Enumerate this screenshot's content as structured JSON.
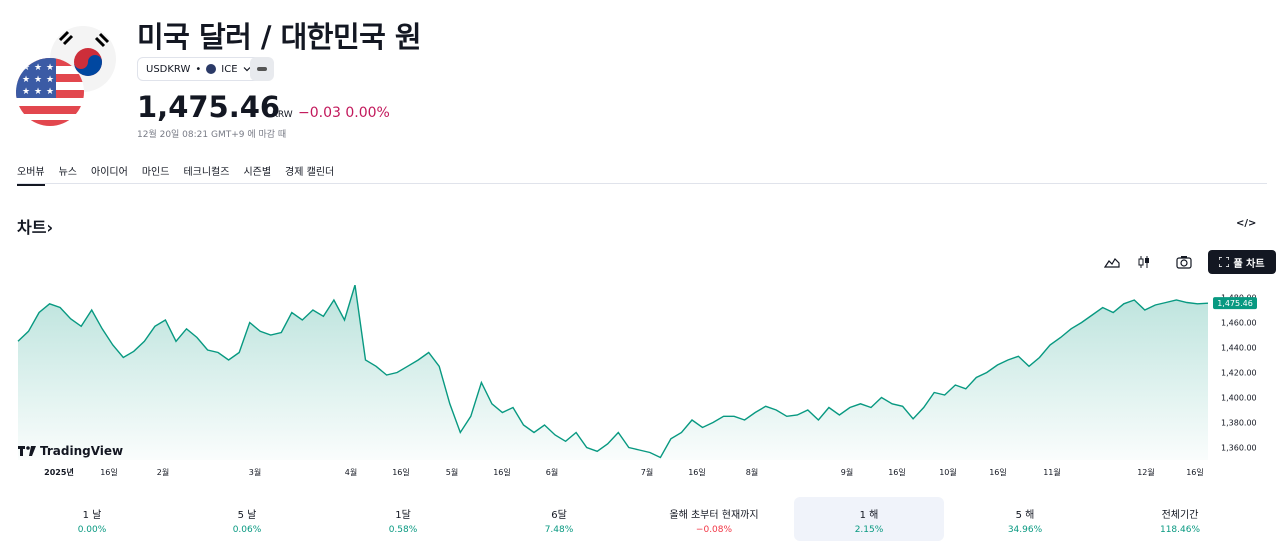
{
  "header": {
    "title": "미국 달러 / 대한민국 원",
    "symbol": "USDKRW",
    "exchange": "ICE",
    "price": "1,475.46",
    "currency": "KRW",
    "change": "−0.03 0.00%",
    "closed_note": "12월 20일 08:21 GMT+9 에 마감 때"
  },
  "tabs": [
    "오버뷰",
    "뉴스",
    "아이디어",
    "마인드",
    "테크니컬즈",
    "시즌별",
    "경제 캘린더"
  ],
  "section": {
    "title": "차트",
    "embed": "</>"
  },
  "toolbar": {
    "full_chart": "풀 차트"
  },
  "watermark": "TradingView",
  "colors": {
    "line": "#089981",
    "negative": "#c2185b",
    "positive": "#089981"
  },
  "chart_data": {
    "type": "area",
    "series": [
      {
        "values": [
          1445,
          1453,
          1468,
          1475,
          1472,
          1463,
          1457,
          1470,
          1455,
          1442,
          1432,
          1437,
          1445,
          1457,
          1462,
          1445,
          1455,
          1448,
          1438,
          1436,
          1430,
          1436,
          1460,
          1453,
          1450,
          1452,
          1468,
          1462,
          1470,
          1465,
          1478,
          1462,
          1490,
          1430,
          1425,
          1418,
          1420,
          1425,
          1430,
          1436,
          1425,
          1395,
          1372,
          1385,
          1412,
          1395,
          1388,
          1392,
          1378,
          1372,
          1378,
          1370,
          1365,
          1372,
          1360,
          1357,
          1363,
          1372,
          1360,
          1358,
          1356,
          1352,
          1367,
          1372,
          1382,
          1376,
          1380,
          1385,
          1385,
          1382,
          1388,
          1393,
          1390,
          1385,
          1386,
          1390,
          1382,
          1392,
          1386,
          1392,
          1395,
          1392,
          1400,
          1395,
          1393,
          1383,
          1392,
          1404,
          1402,
          1410,
          1407,
          1416,
          1420,
          1426,
          1430,
          1433,
          1425,
          1432,
          1442,
          1448,
          1455,
          1460,
          1466,
          1472,
          1468,
          1475,
          1478,
          1470,
          1474,
          1476,
          1478,
          1476,
          1475,
          1475.46
        ]
      }
    ],
    "x_ticks": [
      "2025년",
      "16일",
      "2월",
      "3월",
      "4월",
      "16일",
      "5월",
      "16일",
      "6월",
      "7월",
      "16일",
      "8월",
      "9월",
      "16일",
      "10월",
      "16일",
      "11월",
      "12월",
      "16일"
    ],
    "y_ticks": [
      1480,
      1460,
      1440,
      1420,
      1400,
      1380,
      1360
    ],
    "y_tick_labels": [
      "1,480.00",
      "1,460.00",
      "1,440.00",
      "1,420.00",
      "1,400.00",
      "1,380.00",
      "1,360.00"
    ],
    "ylim": [
      1350,
      1490
    ],
    "last_value_label": "1,475.46"
  },
  "periods": [
    {
      "label": "1 날",
      "value": "0.00%"
    },
    {
      "label": "5 날",
      "value": "0.06%"
    },
    {
      "label": "1달",
      "value": "0.58%"
    },
    {
      "label": "6달",
      "value": "7.48%"
    },
    {
      "label": "올해 초부터 현재까지",
      "value": "−0.08%",
      "negative": true
    },
    {
      "label": "1 해",
      "value": "2.15%",
      "active": true
    },
    {
      "label": "5 해",
      "value": "34.96%"
    },
    {
      "label": "전체기간",
      "value": "118.46%"
    }
  ]
}
